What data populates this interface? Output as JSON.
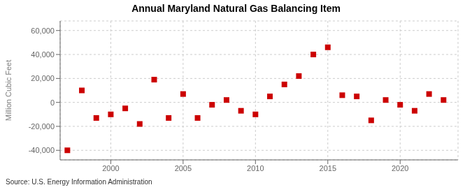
{
  "chart_data": {
    "type": "scatter",
    "title": "Annual Maryland Natural Gas Balancing Item",
    "ylabel": "Million Cubic Feet",
    "annotations": [
      "Source: U.S. Energy Information Administration"
    ],
    "x": [
      1997,
      1998,
      1999,
      2000,
      2001,
      2002,
      2003,
      2004,
      2005,
      2006,
      2007,
      2008,
      2009,
      2010,
      2011,
      2012,
      2013,
      2014,
      2015,
      2016,
      2017,
      2018,
      2019,
      2020,
      2021,
      2022,
      2023
    ],
    "values": [
      -40000,
      10000,
      -13000,
      -10000,
      -5000,
      -18000,
      19000,
      -13000,
      7000,
      -13000,
      -2000,
      2000,
      -7000,
      -10000,
      5000,
      15000,
      22000,
      40000,
      46000,
      6000,
      5000,
      -15000,
      2000,
      -2000,
      -7000,
      7000,
      2000
    ],
    "color": "#cc0000",
    "marker": "square",
    "grid": true,
    "xlim": [
      1996.5,
      2024
    ],
    "xticks": [
      2000,
      2005,
      2010,
      2015,
      2020
    ],
    "ylim": [
      -48000,
      68000
    ],
    "yticks": [
      {
        "value": -40000,
        "label": "-40,000"
      },
      {
        "value": -20000,
        "label": "-20,000"
      },
      0,
      {
        "value": 20000,
        "label": "20,000"
      },
      {
        "value": 40000,
        "label": "40,000"
      },
      {
        "value": 60000,
        "label": "60,000"
      }
    ]
  }
}
